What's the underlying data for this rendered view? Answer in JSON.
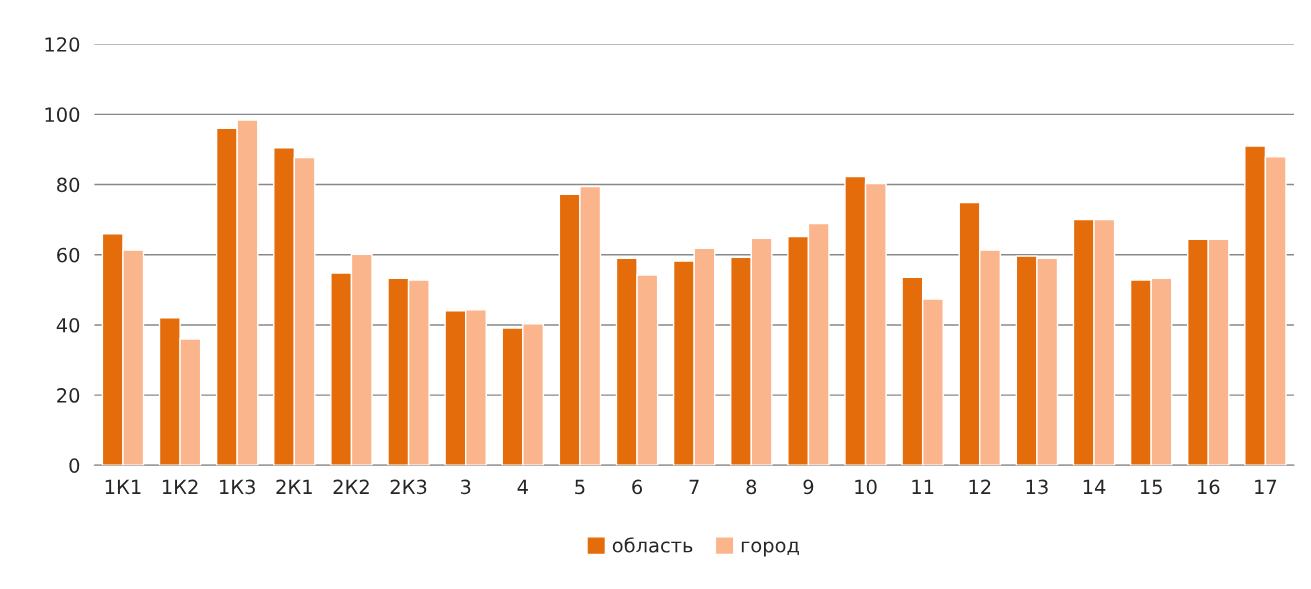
{
  "chart_data": {
    "type": "bar",
    "categories": [
      "1К1",
      "1К2",
      "1К3",
      "2К1",
      "2К2",
      "2К3",
      "3",
      "4",
      "5",
      "6",
      "7",
      "8",
      "9",
      "10",
      "11",
      "12",
      "13",
      "14",
      "15",
      "16",
      "17"
    ],
    "series": [
      {
        "name": "область",
        "color": "#e46c0a",
        "values": [
          66,
          42,
          96,
          90.5,
          54.8,
          53.3,
          44,
          39.1,
          77.2,
          59,
          58.2,
          59.3,
          65.2,
          82.3,
          53.6,
          74.9,
          59.6,
          70,
          52.8,
          64.4,
          91
        ]
      },
      {
        "name": "город",
        "color": "#fab58c",
        "values": [
          61.3,
          36,
          98.4,
          87.7,
          60.1,
          52.8,
          44.3,
          40.3,
          79.4,
          54.2,
          61.8,
          64.7,
          68.9,
          80.3,
          47.4,
          61.3,
          59,
          70,
          53.3,
          64.4,
          87.9
        ]
      }
    ],
    "ylim": [
      0,
      120
    ],
    "yticks": [
      0,
      20,
      40,
      60,
      80,
      100,
      120
    ],
    "grid": "y",
    "legend": "bottom"
  }
}
